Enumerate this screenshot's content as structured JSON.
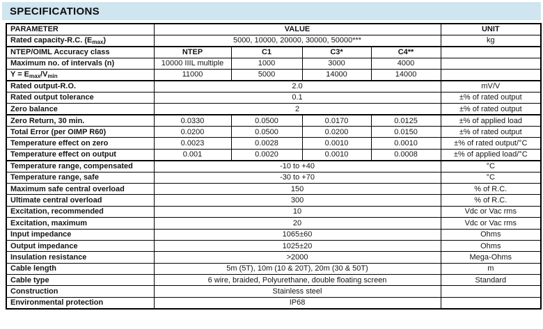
{
  "colors": {
    "header_bar_bg": "#cfe5f0",
    "table_border": "#000000",
    "text": "#141414"
  },
  "section": {
    "title": "SPECIFICATIONS"
  },
  "table": {
    "headers": {
      "parameter": "PARAMETER",
      "value": "VALUE",
      "unit": "UNIT"
    },
    "rows": [
      {
        "parameter": "Rated capacity-R.C. (E_{max})",
        "value": "5000, 10000, 20000, 30000, 50000***",
        "unit": "kg"
      },
      {
        "parameter": "NTEP/OIML Accuracy class",
        "values": [
          "NTEP",
          "C1",
          "C3*",
          "C4**"
        ],
        "unit": "",
        "bold_values": true,
        "section_start": true
      },
      {
        "parameter": "Maximum no. of intervals (n)",
        "values": [
          "10000 IIIL multiple",
          "1000",
          "3000",
          "4000"
        ],
        "unit": ""
      },
      {
        "parameter": "Y = E_{max}/V_{min}",
        "values": [
          "11000",
          "5000",
          "14000",
          "14000"
        ],
        "unit": ""
      },
      {
        "parameter": "Rated output-R.O.",
        "value": "2.0",
        "unit": "mV/V",
        "section_start": true
      },
      {
        "parameter": "Rated output tolerance",
        "value": "0.1",
        "unit": "±% of rated output"
      },
      {
        "parameter": "Zero balance",
        "value": "2",
        "unit": "±% of rated output"
      },
      {
        "parameter": "Zero Return, 30 min.",
        "values": [
          "0.0330",
          "0.0500",
          "0.0170",
          "0.0125"
        ],
        "unit": "±% of applied load",
        "section_start": true
      },
      {
        "parameter": "Total Error (per OIMP R60)",
        "values": [
          "0.0200",
          "0.0500",
          "0.0200",
          "0.0150"
        ],
        "unit": "±% of rated output"
      },
      {
        "parameter": "Temperature effect on zero",
        "values": [
          "0.0023",
          "0.0028",
          "0.0010",
          "0.0010"
        ],
        "unit": "±% of rated output/°C"
      },
      {
        "parameter": "Temperature effect on output",
        "values": [
          "0.001",
          "0.0020",
          "0.0010",
          "0.0008"
        ],
        "unit": "±% of applied load/°C"
      },
      {
        "parameter": "Temperature range, compensated",
        "value": "-10 to +40",
        "unit": "°C",
        "section_start": true
      },
      {
        "parameter": "Temperature range, safe",
        "value": "-30 to +70",
        "unit": "°C"
      },
      {
        "parameter": "Maximum safe central overload",
        "value": "150",
        "unit": "% of R.C."
      },
      {
        "parameter": "Ultimate central overload",
        "value": "300",
        "unit": "% of R.C."
      },
      {
        "parameter": "Excitation, recommended",
        "value": "10",
        "unit": "Vdc or Vac rms"
      },
      {
        "parameter": "Excitation, maximum",
        "value": "20",
        "unit": "Vdc or Vac rms"
      },
      {
        "parameter": "Input impedance",
        "value": "1065±60",
        "unit": "Ohms"
      },
      {
        "parameter": "Output impedance",
        "value": "1025±20",
        "unit": "Ohms"
      },
      {
        "parameter": "Insulation resistance",
        "value": ">2000",
        "unit": "Mega-Ohms"
      },
      {
        "parameter": "Cable length",
        "value": "5m (5T), 10m (10 & 20T), 20m (30 & 50T)",
        "unit": "m"
      },
      {
        "parameter": "Cable type",
        "value": "6 wire, braided, Polyurethane, double floating screen",
        "unit": "Standard"
      },
      {
        "parameter": "Construction",
        "value": "Stainless steel",
        "unit": ""
      },
      {
        "parameter": "Environmental protection",
        "value": "IP68",
        "unit": ""
      }
    ]
  }
}
